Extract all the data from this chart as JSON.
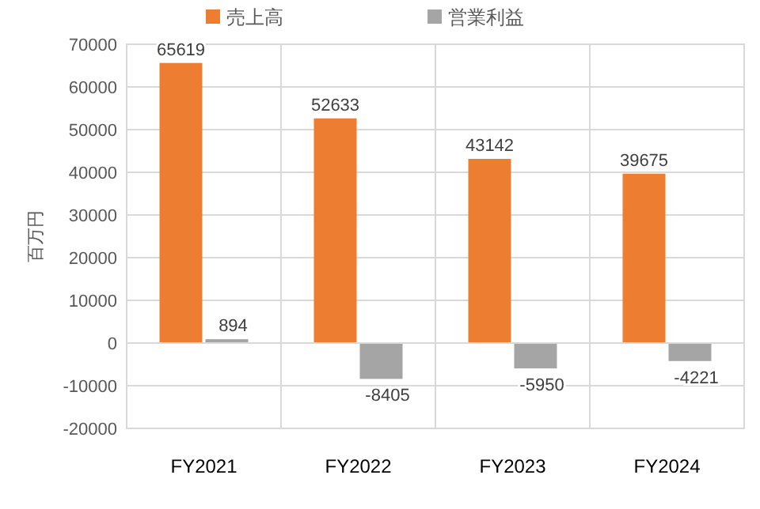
{
  "chart_data": {
    "type": "bar",
    "ylabel": "百万円",
    "categories": [
      "FY2021",
      "FY2022",
      "FY2023",
      "FY2024"
    ],
    "series": [
      {
        "name": "売上高",
        "color": "#ed7d31",
        "values": [
          65619,
          52633,
          43142,
          39675
        ]
      },
      {
        "name": "営業利益",
        "color": "#a5a5a5",
        "values": [
          894,
          -8405,
          -5950,
          -4221
        ]
      }
    ],
    "ylim": [
      -20000,
      70000
    ],
    "yticks": [
      -20000,
      -10000,
      0,
      10000,
      20000,
      30000,
      40000,
      50000,
      60000,
      70000
    ],
    "grid": true,
    "legend": "top",
    "data_labels": true
  }
}
